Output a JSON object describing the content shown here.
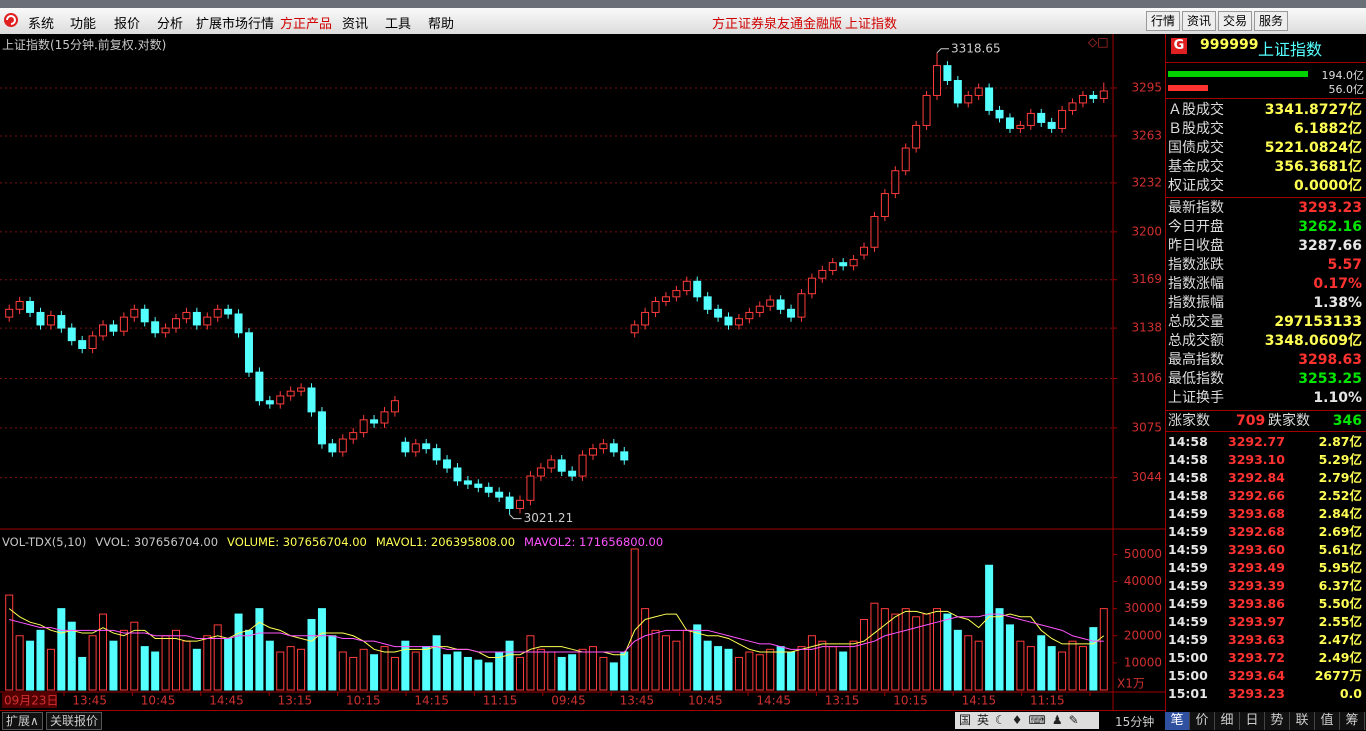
{
  "menu": {
    "items": [
      "系统",
      "功能",
      "报价",
      "分析",
      "扩展市场行情",
      "方正产品",
      "资讯",
      "工具",
      "帮助"
    ],
    "app_title": "方正证券泉友通金融版",
    "symbol_title": "上证指数",
    "buttons": [
      "行情",
      "资讯",
      "交易",
      "服务"
    ]
  },
  "chart_data": {
    "type": "candlestick",
    "title": "上证指数(15分钟.前复权.对数)",
    "log": true,
    "ylim": [
      3013,
      3330
    ],
    "yticks": [
      3044,
      3075,
      3106,
      3138,
      3169,
      3200,
      3232,
      3263,
      3295
    ],
    "grid": true,
    "up_color": "#ff3c3c",
    "down_color": "#54ffff",
    "high_mark": 3318.65,
    "low_mark": 3021.21,
    "x_labels": [
      "09月23日",
      "13:45",
      "10:45",
      "14:45",
      "13:15",
      "10:15",
      "14:15",
      "11:15",
      "09:45",
      "13:45",
      "10:45",
      "14:45",
      "13:15",
      "10:15",
      "14:15",
      "11:15"
    ],
    "period": "15分钟",
    "candles": {
      "open": [
        3145,
        3150,
        3155,
        3148,
        3140,
        3146,
        3138,
        3130,
        3125,
        3133,
        3140,
        3136,
        3145,
        3150,
        3142,
        3135,
        3138,
        3144,
        3148,
        3140,
        3145,
        3150,
        3147,
        3135,
        3110,
        3092,
        3090,
        3095,
        3098,
        3100,
        3085,
        3065,
        3060,
        3068,
        3072,
        3080,
        3078,
        3085,
        3066,
        3060,
        3065,
        3062,
        3055,
        3050,
        3042,
        3040,
        3038,
        3035,
        3032,
        3025,
        3030,
        3045,
        3050,
        3055,
        3048,
        3045,
        3058,
        3062,
        3065,
        3060,
        3135,
        3140,
        3148,
        3155,
        3158,
        3162,
        3168,
        3158,
        3150,
        3145,
        3140,
        3144,
        3148,
        3152,
        3156,
        3150,
        3145,
        3160,
        3170,
        3175,
        3180,
        3178,
        3185,
        3190,
        3210,
        3225,
        3240,
        3255,
        3270,
        3290,
        3310,
        3300,
        3285,
        3290,
        3295,
        3280,
        3275,
        3268,
        3270,
        3278,
        3272,
        3268,
        3280,
        3285,
        3290,
        3288
      ],
      "high": [
        3153,
        3158,
        3158,
        3151,
        3149,
        3149,
        3141,
        3133,
        3136,
        3143,
        3143,
        3148,
        3153,
        3153,
        3145,
        3141,
        3147,
        3151,
        3151,
        3148,
        3153,
        3153,
        3150,
        3138,
        3113,
        3095,
        3098,
        3101,
        3103,
        3103,
        3088,
        3068,
        3071,
        3075,
        3083,
        3083,
        3088,
        3095,
        3069,
        3068,
        3068,
        3065,
        3058,
        3053,
        3045,
        3043,
        3041,
        3038,
        3035,
        3033,
        3048,
        3053,
        3058,
        3058,
        3051,
        3061,
        3065,
        3068,
        3068,
        3063,
        3143,
        3151,
        3158,
        3161,
        3165,
        3171,
        3171,
        3161,
        3153,
        3148,
        3147,
        3151,
        3155,
        3159,
        3159,
        3153,
        3163,
        3173,
        3178,
        3183,
        3183,
        3185,
        3193,
        3213,
        3228,
        3243,
        3258,
        3273,
        3293,
        3318.65,
        3313,
        3303,
        3293,
        3298,
        3298,
        3283,
        3278,
        3273,
        3281,
        3281,
        3275,
        3283,
        3288,
        3293,
        3293,
        3298.63
      ],
      "low": [
        3142,
        3147,
        3145,
        3137,
        3137,
        3135,
        3127,
        3122,
        3122,
        3130,
        3133,
        3133,
        3142,
        3139,
        3132,
        3132,
        3135,
        3141,
        3137,
        3137,
        3142,
        3144,
        3132,
        3107,
        3089,
        3087,
        3087,
        3092,
        3095,
        3082,
        3062,
        3057,
        3057,
        3065,
        3069,
        3075,
        3075,
        3082,
        3057,
        3057,
        3059,
        3052,
        3047,
        3039,
        3037,
        3035,
        3032,
        3029,
        3021.21,
        3022,
        3027,
        3042,
        3047,
        3045,
        3042,
        3042,
        3055,
        3059,
        3057,
        3052,
        3132,
        3137,
        3145,
        3152,
        3155,
        3159,
        3155,
        3147,
        3142,
        3137,
        3137,
        3141,
        3145,
        3149,
        3147,
        3142,
        3142,
        3157,
        3167,
        3172,
        3175,
        3175,
        3182,
        3187,
        3207,
        3222,
        3237,
        3252,
        3267,
        3287,
        3297,
        3282,
        3282,
        3287,
        3277,
        3272,
        3265,
        3265,
        3267,
        3269,
        3265,
        3265,
        3277,
        3282,
        3285,
        3285
      ],
      "close": [
        3150,
        3155,
        3148,
        3140,
        3146,
        3138,
        3130,
        3125,
        3133,
        3140,
        3136,
        3145,
        3150,
        3142,
        3135,
        3138,
        3144,
        3148,
        3140,
        3145,
        3150,
        3147,
        3135,
        3110,
        3092,
        3090,
        3095,
        3098,
        3100,
        3085,
        3065,
        3060,
        3068,
        3072,
        3080,
        3078,
        3085,
        3092,
        3060,
        3065,
        3062,
        3055,
        3050,
        3042,
        3040,
        3038,
        3035,
        3032,
        3025,
        3030,
        3045,
        3050,
        3055,
        3048,
        3045,
        3058,
        3062,
        3065,
        3060,
        3055,
        3140,
        3148,
        3155,
        3158,
        3162,
        3168,
        3158,
        3150,
        3145,
        3140,
        3144,
        3148,
        3152,
        3156,
        3150,
        3145,
        3160,
        3170,
        3175,
        3180,
        3178,
        3182,
        3190,
        3210,
        3225,
        3240,
        3255,
        3270,
        3290,
        3310,
        3300,
        3285,
        3290,
        3295,
        3280,
        3275,
        3268,
        3270,
        3278,
        3272,
        3268,
        3280,
        3285,
        3290,
        3288,
        3293
      ]
    },
    "volume": {
      "header": [
        {
          "text": "VOL-TDX(5,10)",
          "color": "#c8c8c8"
        },
        {
          "text": "VVOL: 307656704.00",
          "color": "#c8c8c8"
        },
        {
          "text": "VOLUME: 307656704.00",
          "color": "#ffff54"
        },
        {
          "text": "MAVOL1: 206395808.00",
          "color": "#ffff54"
        },
        {
          "text": "MAVOL2: 171656800.00",
          "color": "#ff54ff"
        }
      ],
      "unit": "X1万",
      "ylim": [
        0,
        59000
      ],
      "yticks": [
        10000,
        20000,
        30000,
        40000,
        50000
      ],
      "values": [
        35000,
        20000,
        18000,
        22000,
        15000,
        30000,
        25000,
        12000,
        20000,
        28000,
        18000,
        22000,
        25000,
        16000,
        14000,
        20000,
        22000,
        18000,
        15000,
        20000,
        24000,
        19000,
        28000,
        22000,
        30000,
        18000,
        14000,
        16000,
        15000,
        26000,
        30000,
        20000,
        14000,
        12000,
        15000,
        13000,
        16000,
        12000,
        18000,
        14000,
        16000,
        20000,
        13000,
        14000,
        12000,
        11000,
        10000,
        14000,
        18000,
        12000,
        20000,
        15000,
        14000,
        12000,
        13000,
        15000,
        16000,
        12000,
        10000,
        14000,
        52000,
        30000,
        22000,
        20000,
        18000,
        22000,
        24000,
        18000,
        16000,
        15000,
        12000,
        14000,
        13000,
        15000,
        16000,
        14000,
        16000,
        20000,
        18000,
        16000,
        14000,
        18000,
        26000,
        32000,
        30000,
        28000,
        30000,
        27000,
        28000,
        30000,
        28000,
        22000,
        20000,
        18000,
        46000,
        30000,
        24000,
        18000,
        16000,
        20000,
        16000,
        14000,
        18000,
        16000,
        23000,
        30000
      ],
      "mavol1": {
        "color": "#ffff54",
        "values": [
          30000,
          27000,
          25000,
          24000,
          22000,
          21000,
          22000,
          21000,
          21000,
          23000,
          21000,
          20000,
          22000,
          22000,
          19000,
          19000,
          19000,
          18000,
          18000,
          19000,
          20000,
          19000,
          21000,
          22000,
          25000,
          23000,
          22000,
          20000,
          19000,
          18000,
          21000,
          21000,
          21000,
          20000,
          18000,
          15000,
          14000,
          14000,
          15000,
          15000,
          15000,
          16000,
          16000,
          15000,
          15000,
          14000,
          12000,
          12000,
          13000,
          13000,
          15000,
          16000,
          16000,
          16000,
          15000,
          14000,
          14000,
          14000,
          13000,
          13000,
          22000,
          26000,
          27000,
          28000,
          28000,
          22000,
          21000,
          20000,
          20000,
          19000,
          17000,
          15000,
          14000,
          14000,
          14000,
          14000,
          15000,
          16000,
          17000,
          17000,
          17000,
          17000,
          18000,
          21000,
          24000,
          27000,
          29000,
          29000,
          28000,
          29000,
          29000,
          27000,
          26000,
          23000,
          27000,
          27000,
          28000,
          27000,
          27000,
          22000,
          19000,
          17000,
          17000,
          17000,
          17000,
          20000
        ]
      },
      "mavol2": {
        "color": "#ff54ff",
        "values": [
          26000,
          25000,
          24000,
          23000,
          23000,
          22000,
          22000,
          22000,
          22000,
          22000,
          22000,
          21000,
          21000,
          21000,
          20000,
          20000,
          20000,
          20000,
          19000,
          19000,
          19000,
          19000,
          20000,
          20000,
          21000,
          21000,
          21000,
          20000,
          20000,
          20000,
          20000,
          20000,
          19000,
          19000,
          18000,
          18000,
          17000,
          16000,
          16000,
          16000,
          16000,
          16000,
          15000,
          15000,
          15000,
          14000,
          14000,
          14000,
          14000,
          14000,
          14000,
          14000,
          14000,
          14000,
          14000,
          14000,
          14000,
          14000,
          14000,
          14000,
          18000,
          20000,
          21000,
          22000,
          22000,
          22000,
          22000,
          22000,
          21000,
          20000,
          19000,
          18000,
          17000,
          17000,
          16000,
          15000,
          15000,
          15000,
          16000,
          16000,
          16000,
          16000,
          17000,
          18000,
          20000,
          21000,
          22000,
          23000,
          24000,
          25000,
          26000,
          27000,
          27000,
          27000,
          28000,
          28000,
          27000,
          26000,
          25000,
          24000,
          23000,
          22000,
          20000,
          19000,
          18000,
          18000
        ]
      }
    }
  },
  "panel": {
    "icon": "G",
    "code": "999999",
    "name": "上证指数",
    "buy": {
      "value": 194.0,
      "label": "194.0亿",
      "color": "#00d200"
    },
    "sell": {
      "value": 56.0,
      "label": "56.0亿",
      "color": "#ff3232"
    },
    "turnover": [
      {
        "label": "Ａ股成交",
        "value": "3341.8727亿"
      },
      {
        "label": "Ｂ股成交",
        "value": "6.1882亿"
      },
      {
        "label": "国债成交",
        "value": "5221.0824亿"
      },
      {
        "label": "基金成交",
        "value": "356.3681亿"
      },
      {
        "label": "权证成交",
        "value": "0.0000亿"
      }
    ],
    "stats": [
      {
        "label": "最新指数",
        "value": "3293.23",
        "color": "#ff3232"
      },
      {
        "label": "今日开盘",
        "value": "3262.16",
        "color": "#00e600"
      },
      {
        "label": "昨日收盘",
        "value": "3287.66",
        "color": "#e6e6e6"
      },
      {
        "label": "指数涨跌",
        "value": "5.57",
        "color": "#ff3232"
      },
      {
        "label": "指数涨幅",
        "value": "0.17%",
        "color": "#ff3232"
      },
      {
        "label": "指数振幅",
        "value": "1.38%",
        "color": "#e6e6e6"
      },
      {
        "label": "总成交量",
        "value": "297153133",
        "color": "#ffff54"
      },
      {
        "label": "总成交额",
        "value": "3348.0609亿",
        "color": "#ffff54"
      },
      {
        "label": "最高指数",
        "value": "3298.63",
        "color": "#ff3232"
      },
      {
        "label": "最低指数",
        "value": "3253.25",
        "color": "#00e600"
      },
      {
        "label": "上证换手",
        "value": "1.10%",
        "color": "#e6e6e6"
      }
    ],
    "breadth": {
      "up_label": "涨家数",
      "up": "709",
      "down_label": "跌家数",
      "down": "346"
    },
    "ticks": [
      {
        "time": "14:58",
        "price": "3292.77",
        "vol": "2.87亿"
      },
      {
        "time": "14:58",
        "price": "3293.10",
        "vol": "5.29亿"
      },
      {
        "time": "14:58",
        "price": "3292.84",
        "vol": "2.79亿"
      },
      {
        "time": "14:58",
        "price": "3292.66",
        "vol": "2.52亿"
      },
      {
        "time": "14:59",
        "price": "3293.68",
        "vol": "2.84亿"
      },
      {
        "time": "14:59",
        "price": "3292.68",
        "vol": "2.69亿"
      },
      {
        "time": "14:59",
        "price": "3293.60",
        "vol": "5.61亿"
      },
      {
        "time": "14:59",
        "price": "3293.49",
        "vol": "5.95亿"
      },
      {
        "time": "14:59",
        "price": "3293.39",
        "vol": "6.37亿"
      },
      {
        "time": "14:59",
        "price": "3293.86",
        "vol": "5.50亿"
      },
      {
        "time": "14:59",
        "price": "3293.97",
        "vol": "2.55亿"
      },
      {
        "time": "14:59",
        "price": "3293.63",
        "vol": "2.47亿"
      },
      {
        "time": "15:00",
        "price": "3293.72",
        "vol": "2.49亿"
      },
      {
        "time": "15:00",
        "price": "3293.64",
        "vol": "2677万"
      },
      {
        "time": "15:01",
        "price": "3293.23",
        "vol": "0.0"
      }
    ],
    "tabs": [
      "笔",
      "价",
      "细",
      "日",
      "势",
      "联",
      "值",
      "筹"
    ]
  },
  "bottom": {
    "left_buttons": [
      "扩展∧",
      "关联报价"
    ]
  }
}
